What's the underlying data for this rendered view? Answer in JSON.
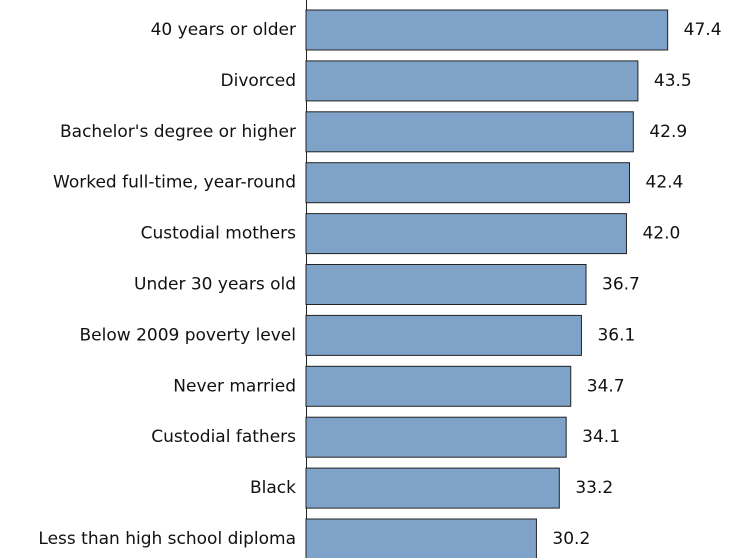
{
  "chart_data": {
    "type": "bar",
    "orientation": "horizontal",
    "categories": [
      "40 years or older",
      "Divorced",
      "Bachelor's degree or higher",
      "Worked full-time, year-round",
      "Custodial mothers",
      "Under 30 years old",
      "Below 2009 poverty level",
      "Never married",
      "Custodial fathers",
      "Black",
      "Less than high school diploma"
    ],
    "values": [
      47.4,
      43.5,
      42.9,
      42.4,
      42.0,
      36.7,
      36.1,
      34.7,
      34.1,
      33.2,
      30.2
    ],
    "value_labels": [
      "47.4",
      "43.5",
      "42.9",
      "42.4",
      "42.0",
      "36.7",
      "36.1",
      "34.7",
      "34.1",
      "33.2",
      "30.2"
    ],
    "color": "#7fa3c8"
  }
}
